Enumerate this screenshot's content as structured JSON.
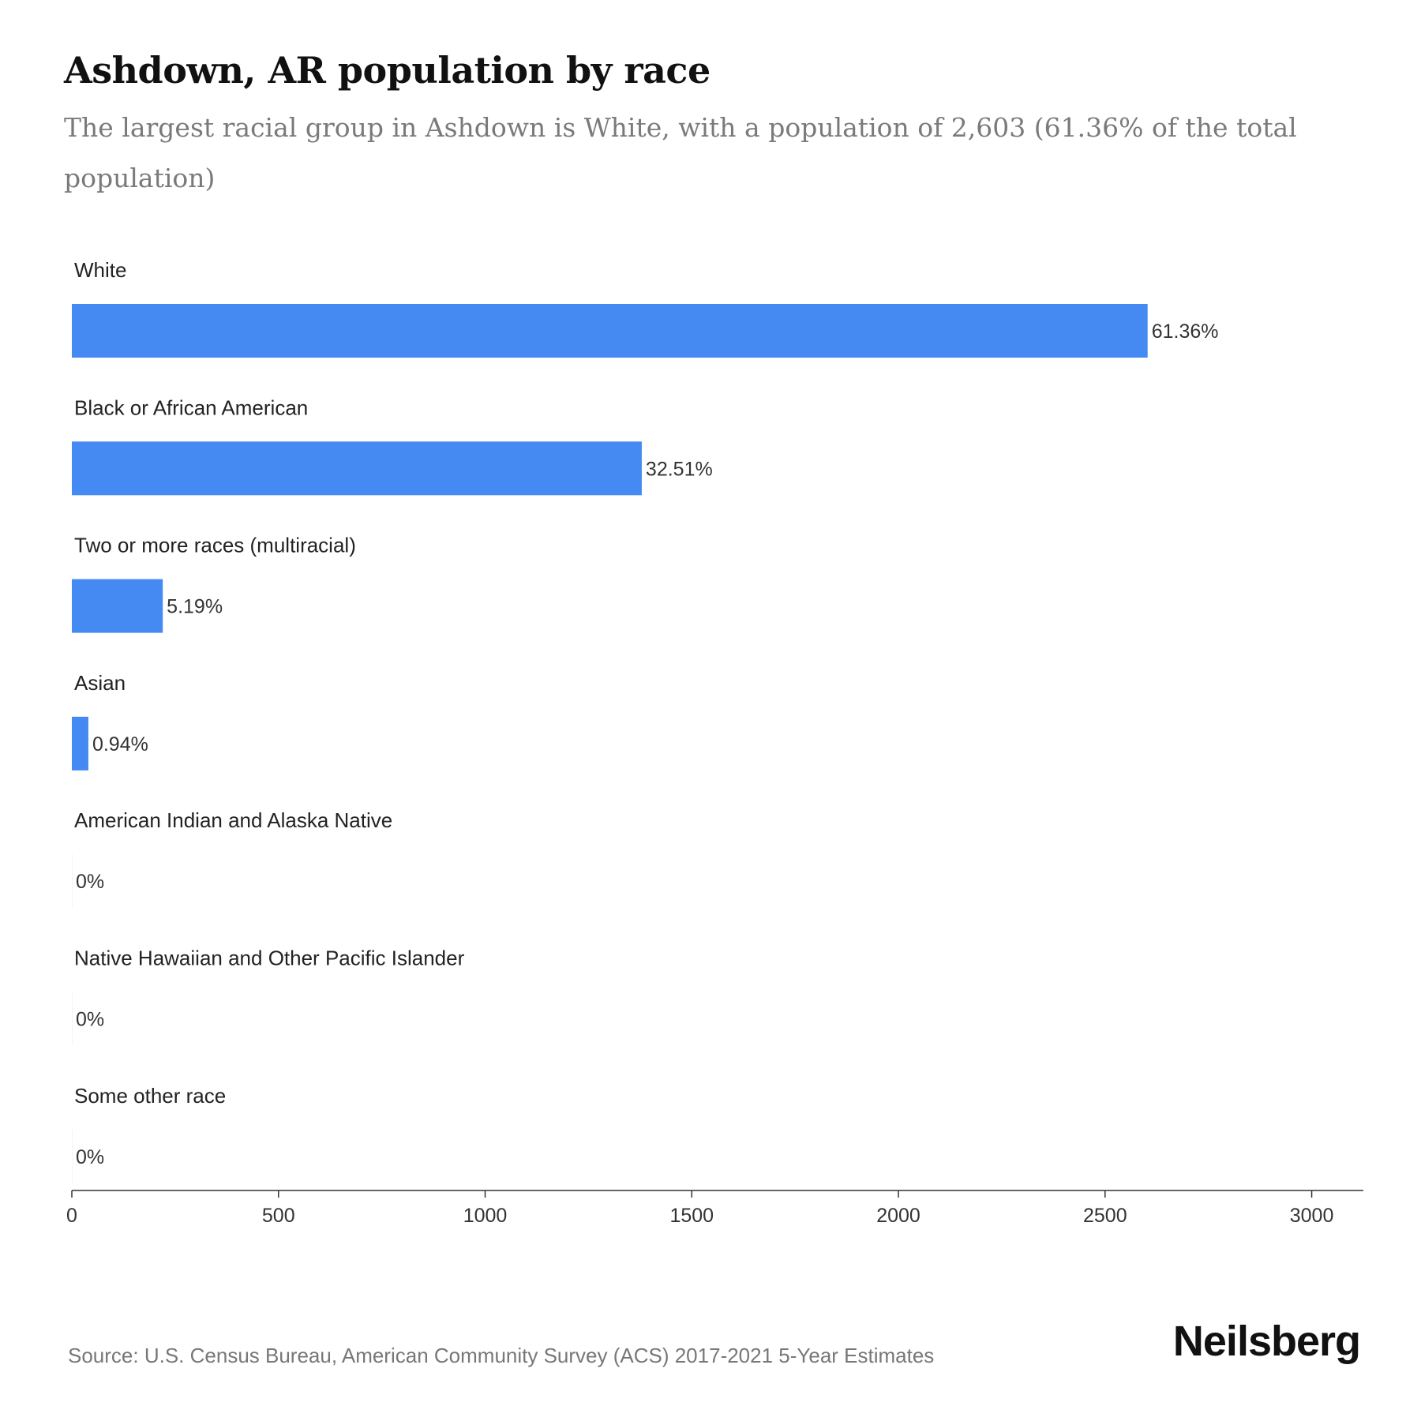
{
  "title": "Ashdown, AR population by race",
  "subtitle": "The largest racial group in Ashdown is White, with a population of 2,603 (61.36% of the total population)",
  "source": "Source: U.S. Census Bureau, American Community Survey (ACS) 2017-2021 5-Year Estimates",
  "brand": "Neilsberg",
  "colors": {
    "bar": "#4589f3",
    "text": "#222222",
    "axis": "#333333"
  },
  "chart_data": {
    "type": "bar",
    "orientation": "horizontal",
    "categories": [
      "White",
      "Black or African American",
      "Two or more races (multiracial)",
      "Asian",
      "American Indian and Alaska Native",
      "Native Hawaiian and Other Pacific Islander",
      "Some other race"
    ],
    "values": [
      2603,
      1379,
      220,
      40,
      0,
      0,
      0
    ],
    "labels": [
      "61.36%",
      "32.51%",
      "5.19%",
      "0.94%",
      "0%",
      "0%",
      "0%"
    ],
    "xlim": [
      0,
      3125
    ],
    "xticks": [
      0,
      500,
      1000,
      1500,
      2000,
      2500,
      3000
    ],
    "grid": false,
    "legend": "none"
  }
}
